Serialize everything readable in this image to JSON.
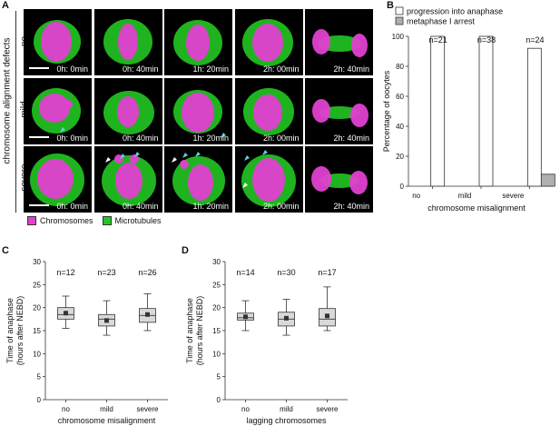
{
  "panel_a": {
    "letter": "A",
    "group_label": "chromosome alignment defects",
    "rows": [
      {
        "label": "no",
        "times": [
          "0h: 0min",
          "0h: 40min",
          "1h: 20min",
          "2h: 00min",
          "2h: 40min"
        ]
      },
      {
        "label": "mild",
        "times": [
          "0h: 0min",
          "0h: 40min",
          "1h: 20min",
          "2h: 00min",
          "2h: 40min"
        ]
      },
      {
        "label": "severe",
        "times": [
          "0h: 0min",
          "0h: 40min",
          "1h: 20min",
          "2h: 00min",
          "2h: 40min"
        ]
      }
    ],
    "legend": {
      "chromosomes": "Chromosomes",
      "microtubules": "Microtubules"
    },
    "colors": {
      "chromosomes": "#e040d0",
      "microtubules": "#22c822",
      "arrow_cyan": "#5fd0e0",
      "arrow_white": "#ffffff"
    }
  },
  "chart_data": [
    {
      "panel": "B",
      "type": "bar",
      "categories": [
        "no",
        "mild",
        "severe"
      ],
      "series": [
        {
          "name": "progression into anaphase",
          "values": [
            100,
            100,
            92
          ],
          "color": "#ffffff"
        },
        {
          "name": "metaphase I arrest",
          "values": [
            0,
            0,
            8
          ],
          "color": "#b0b0b0"
        }
      ],
      "annotations": [
        "n=21",
        "n=38",
        "n=24"
      ],
      "xlabel": "chromosome misalignment",
      "ylabel": "Percentage of oocytes",
      "ylim": [
        0,
        100
      ],
      "yticks": [
        0,
        20,
        40,
        60,
        80,
        100
      ],
      "legend_position": "top"
    },
    {
      "panel": "C",
      "type": "box",
      "categories": [
        "no",
        "mild",
        "severe"
      ],
      "boxes": [
        {
          "min": 15.5,
          "q1": 17.5,
          "median": 18.5,
          "q3": 20.0,
          "max": 22.5,
          "mean": 18.8
        },
        {
          "min": 14.0,
          "q1": 16.0,
          "median": 17.5,
          "q3": 18.5,
          "max": 21.5,
          "mean": 17.2
        },
        {
          "min": 15.0,
          "q1": 16.8,
          "median": 18.3,
          "q3": 19.8,
          "max": 23.0,
          "mean": 18.5
        }
      ],
      "annotations": [
        "n=12",
        "n=23",
        "n=26"
      ],
      "xlabel": "chromosome misalignment",
      "ylabel": [
        "Time of anaphase",
        "(hours after NEBD)"
      ],
      "ylim": [
        0,
        30
      ],
      "yticks": [
        0,
        5,
        10,
        15,
        20,
        25,
        30
      ]
    },
    {
      "panel": "D",
      "type": "box",
      "categories": [
        "no",
        "mild",
        "severe"
      ],
      "boxes": [
        {
          "min": 15.0,
          "q1": 17.3,
          "median": 17.8,
          "q3": 18.8,
          "max": 21.5,
          "mean": 18.0
        },
        {
          "min": 14.0,
          "q1": 16.0,
          "median": 17.5,
          "q3": 19.0,
          "max": 21.8,
          "mean": 17.7
        },
        {
          "min": 15.0,
          "q1": 16.0,
          "median": 17.5,
          "q3": 19.8,
          "max": 24.5,
          "mean": 18.2
        }
      ],
      "annotations": [
        "n=14",
        "n=30",
        "n=17"
      ],
      "xlabel": "lagging chromosomes",
      "ylabel": [
        "Time of anaphase",
        "(hours after NEBD)"
      ],
      "ylim": [
        0,
        30
      ],
      "yticks": [
        0,
        5,
        10,
        15,
        20,
        25,
        30
      ]
    }
  ]
}
